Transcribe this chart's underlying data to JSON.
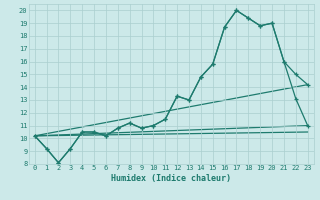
{
  "title": "",
  "xlabel": "Humidex (Indice chaleur)",
  "background_color": "#cce9e9",
  "line_color": "#1e7b6e",
  "grid_color": "#aacfcf",
  "xlim": [
    -0.5,
    23.5
  ],
  "ylim": [
    8,
    20.5
  ],
  "xticks": [
    0,
    1,
    2,
    3,
    4,
    5,
    6,
    7,
    8,
    9,
    10,
    11,
    12,
    13,
    14,
    15,
    16,
    17,
    18,
    19,
    20,
    21,
    22,
    23
  ],
  "yticks": [
    8,
    9,
    10,
    11,
    12,
    13,
    14,
    15,
    16,
    17,
    18,
    19,
    20
  ],
  "series1_x": [
    0,
    1,
    2,
    3,
    4,
    5,
    6,
    7,
    8,
    9,
    10,
    11,
    12,
    13,
    14,
    15,
    16,
    17,
    18,
    19,
    20,
    21,
    22,
    23
  ],
  "series1_y": [
    10.2,
    9.2,
    8.1,
    9.2,
    10.5,
    10.5,
    10.2,
    10.8,
    11.2,
    10.8,
    11.0,
    11.5,
    13.3,
    13.0,
    14.8,
    15.8,
    18.7,
    20.0,
    19.4,
    18.8,
    19.0,
    16.0,
    15.0,
    14.2
  ],
  "series2_x": [
    0,
    1,
    2,
    3,
    4,
    5,
    6,
    7,
    8,
    9,
    10,
    11,
    12,
    13,
    14,
    15,
    16,
    17,
    18,
    19,
    20,
    21,
    22,
    23
  ],
  "series2_y": [
    10.2,
    9.2,
    8.1,
    9.2,
    10.5,
    10.5,
    10.2,
    10.8,
    11.2,
    10.8,
    11.0,
    11.5,
    13.3,
    13.0,
    14.8,
    15.8,
    18.7,
    20.0,
    19.4,
    18.8,
    19.0,
    16.0,
    13.1,
    11.0
  ],
  "line1_x": [
    0,
    23
  ],
  "line1_y": [
    10.2,
    11.0
  ],
  "line2_x": [
    0,
    23
  ],
  "line2_y": [
    10.2,
    14.2
  ],
  "line3_x": [
    0,
    23
  ],
  "line3_y": [
    10.2,
    10.5
  ]
}
